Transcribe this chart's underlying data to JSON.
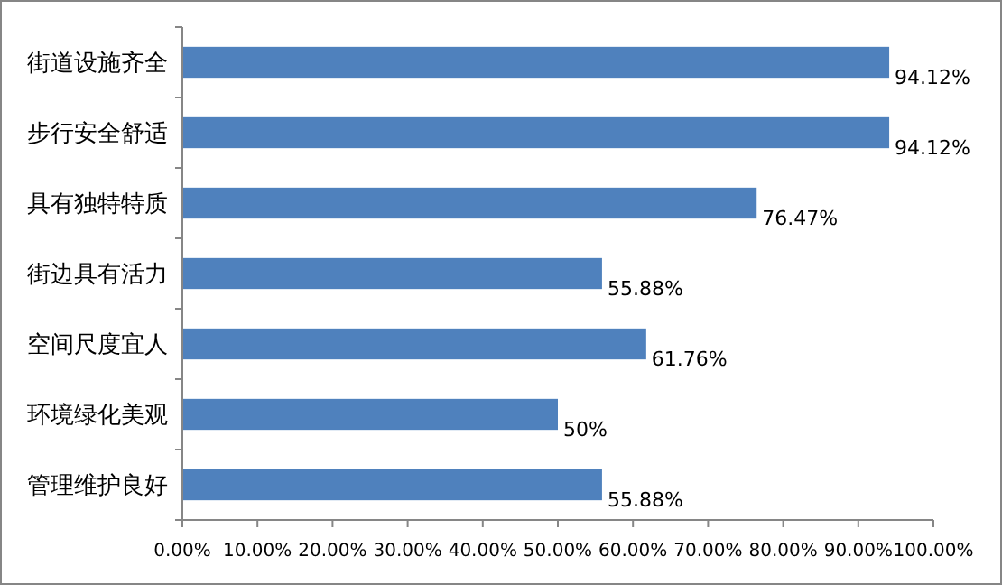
{
  "chart_data": {
    "type": "bar",
    "orientation": "horizontal",
    "categories": [
      "街道设施齐全",
      "步行安全舒适",
      "具有独特特质",
      "街边具有活力",
      "空间尺度宜人",
      "环境绿化美观",
      "管理维护良好"
    ],
    "values": [
      94.12,
      94.12,
      76.47,
      55.88,
      61.76,
      50,
      55.88
    ],
    "value_labels": [
      "94.12%",
      "94.12%",
      "76.47%",
      "55.88%",
      "61.76%",
      "50%",
      "55.88%"
    ],
    "color": "#4f81bd",
    "xlim": [
      0,
      100
    ],
    "xticks": [
      {
        "value": 0,
        "label": "0.00%"
      },
      {
        "value": 10,
        "label": "10.00%"
      },
      {
        "value": 20,
        "label": "20.00%"
      },
      {
        "value": 30,
        "label": "30.00%"
      },
      {
        "value": 40,
        "label": "40.00%"
      },
      {
        "value": 50,
        "label": "50.00%"
      },
      {
        "value": 60,
        "label": "60.00%"
      },
      {
        "value": 70,
        "label": "70.00%"
      },
      {
        "value": 80,
        "label": "80.00%"
      },
      {
        "value": 90,
        "label": "90.00%"
      },
      {
        "value": 100,
        "label": "100.00%"
      }
    ],
    "grid": false
  }
}
